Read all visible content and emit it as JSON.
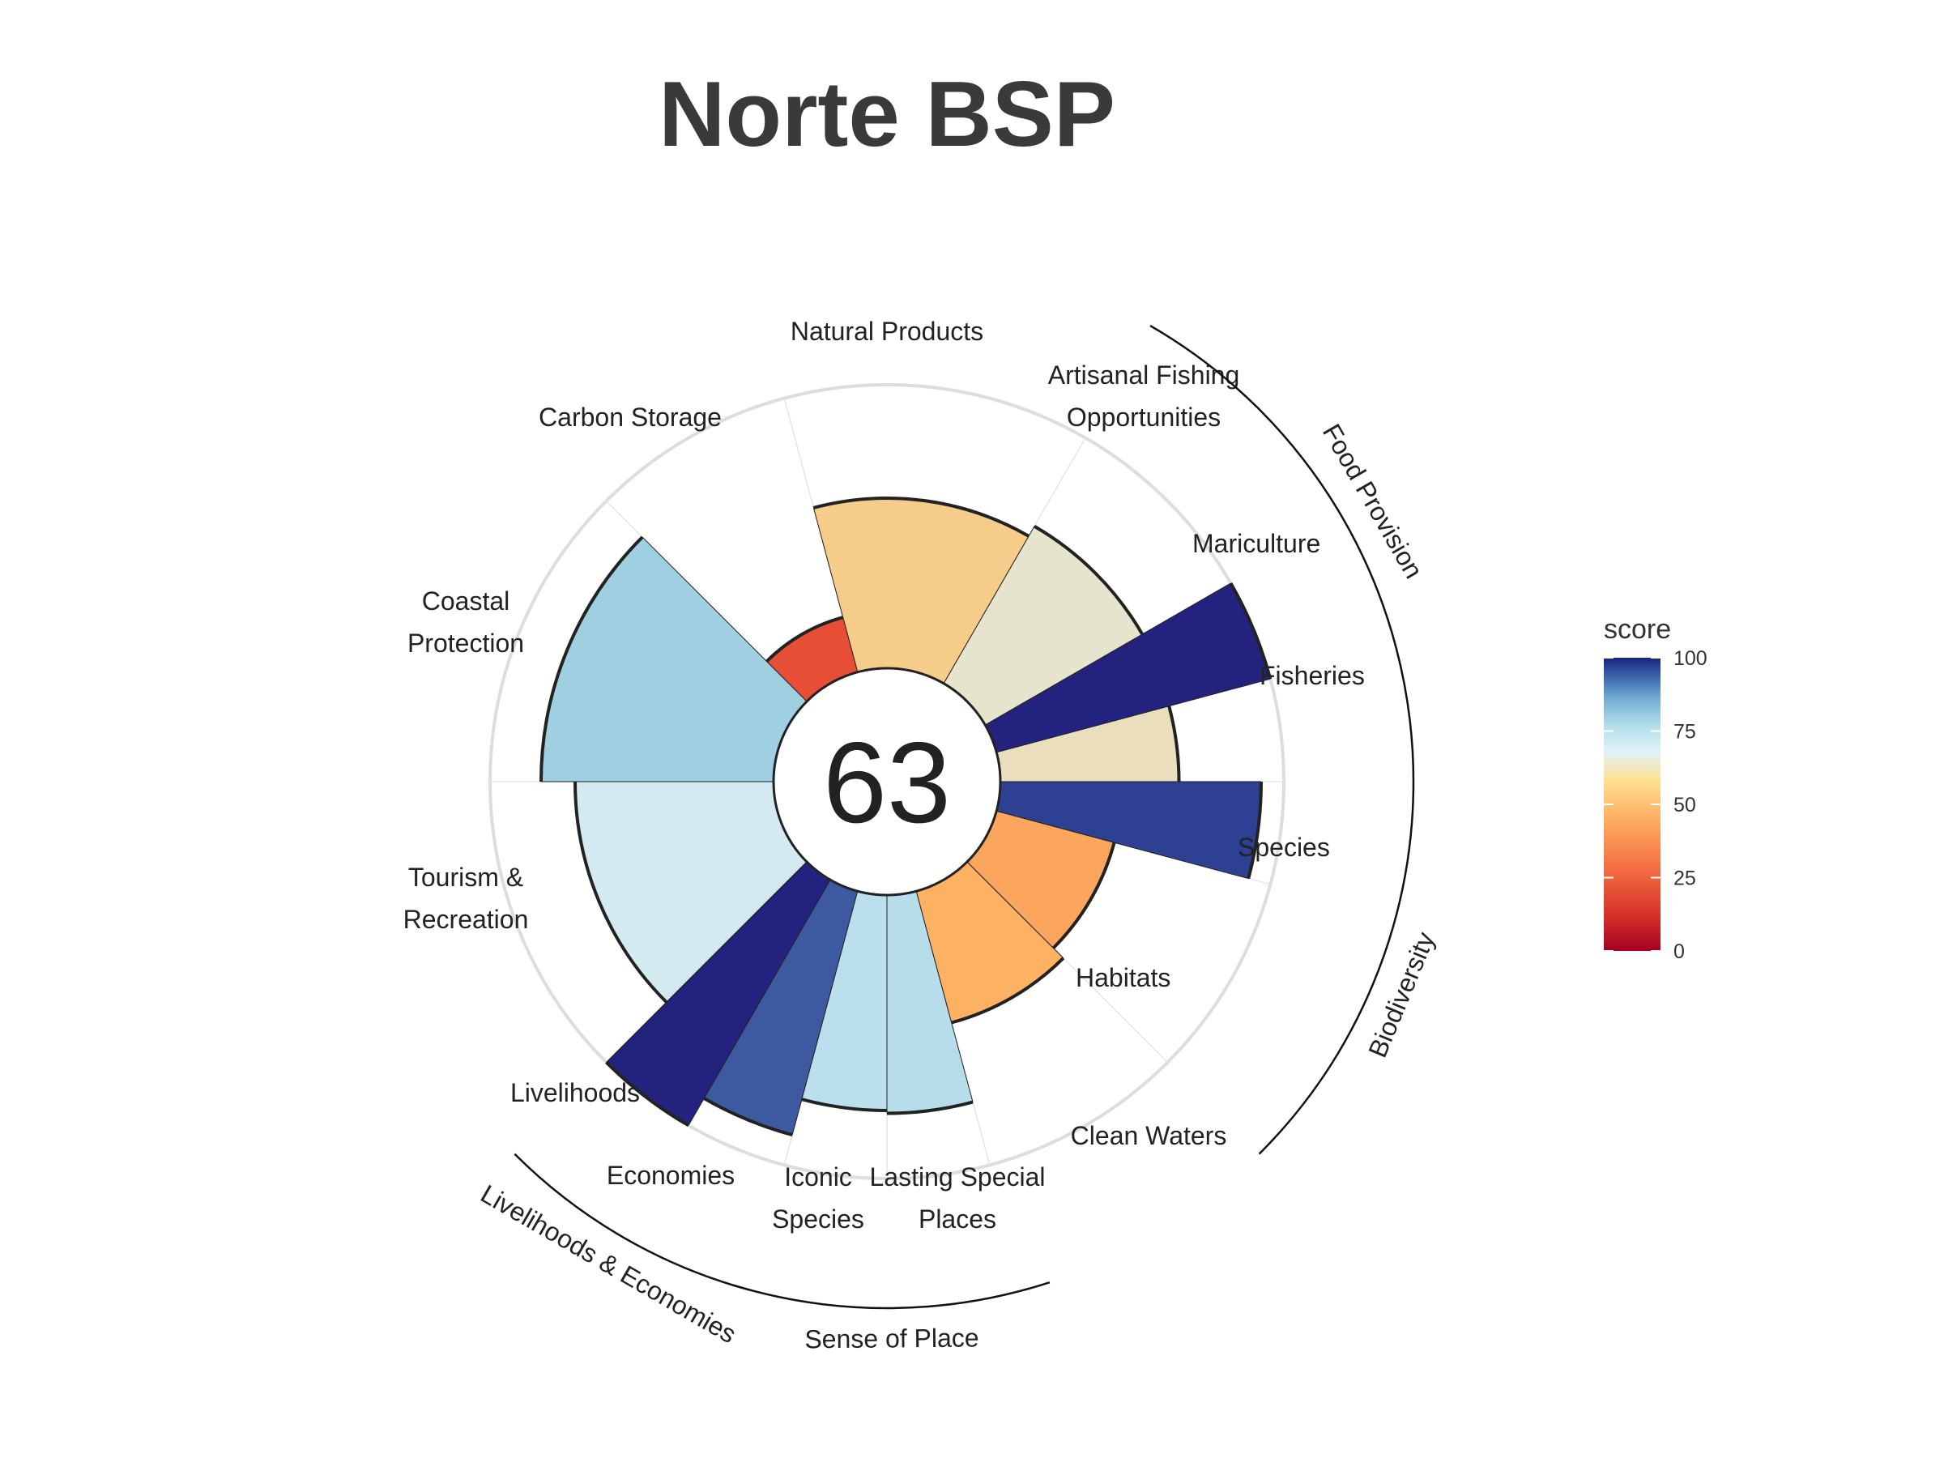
{
  "chart_data": {
    "type": "polar-bar",
    "title": "Norte BSP",
    "center_score": "63",
    "max_score": 100,
    "goals": [
      {
        "label": [
          "Fisheries"
        ],
        "value": 63,
        "angle_start": 75,
        "angle_end": 90
      },
      {
        "label": [
          "Mariculture"
        ],
        "value": 100,
        "angle_start": 60,
        "angle_end": 75
      },
      {
        "label": [
          "Artisanal Fishing",
          "Opportunities"
        ],
        "value": 64,
        "angle_start": 30,
        "angle_end": 60
      },
      {
        "label": [
          "Natural Products"
        ],
        "value": 60,
        "angle_start": -15,
        "angle_end": 30
      },
      {
        "label": [
          "Carbon Storage"
        ],
        "value": 20,
        "angle_start": -45,
        "angle_end": -15
      },
      {
        "label": [
          "Coastal",
          "Protection"
        ],
        "value": 82,
        "angle_start": -90,
        "angle_end": -45
      },
      {
        "label": [
          "Tourism &",
          "Recreation"
        ],
        "value": 70,
        "angle_start": -135,
        "angle_end": -90
      },
      {
        "label": [
          "Livelihoods"
        ],
        "value": 100,
        "angle_start": -150,
        "angle_end": -135
      },
      {
        "label": [
          "Economies"
        ],
        "value": 89,
        "angle_start": -165,
        "angle_end": -150
      },
      {
        "label": [
          "Iconic",
          "Species"
        ],
        "value": 76,
        "angle_start": -180,
        "angle_end": -165
      },
      {
        "label": [
          "Lasting Special",
          "Places"
        ],
        "value": 77,
        "angle_start": 165,
        "angle_end": 180
      },
      {
        "label": [
          "Clean Waters"
        ],
        "value": 48,
        "angle_start": 135,
        "angle_end": 165
      },
      {
        "label": [
          "Habitats"
        ],
        "value": 43,
        "angle_start": 105,
        "angle_end": 135
      },
      {
        "label": [
          "Species"
        ],
        "value": 92,
        "angle_start": 90,
        "angle_end": 105
      }
    ],
    "groups": [
      {
        "label": "Food Provision",
        "angle_start": 30,
        "angle_end": 90
      },
      {
        "label": "Biodiversity",
        "angle_start": 90,
        "angle_end": 135
      },
      {
        "label": "Sense of Place",
        "angle_start": 162,
        "angle_end": 197
      },
      {
        "label": "Livelihoods & Economies",
        "angle_start": -165,
        "angle_end": -135
      }
    ],
    "legend": {
      "title": "score",
      "position": "right",
      "ticks": [
        "100",
        "75",
        "50",
        "25",
        "0"
      ],
      "tick_values": [
        100,
        75,
        50,
        25,
        0
      ],
      "colors": [
        "#a50026",
        "#d73027",
        "#f46d43",
        "#fdae61",
        "#fee090",
        "#e0f3f8",
        "#abd9e9",
        "#74add1",
        "#4575b4",
        "#313695",
        "#1a1a80"
      ]
    },
    "colors": {
      "bar_outline": "#222222",
      "grid_circle": "#dddddd",
      "grid_spoke": "#e6e6e6"
    }
  }
}
